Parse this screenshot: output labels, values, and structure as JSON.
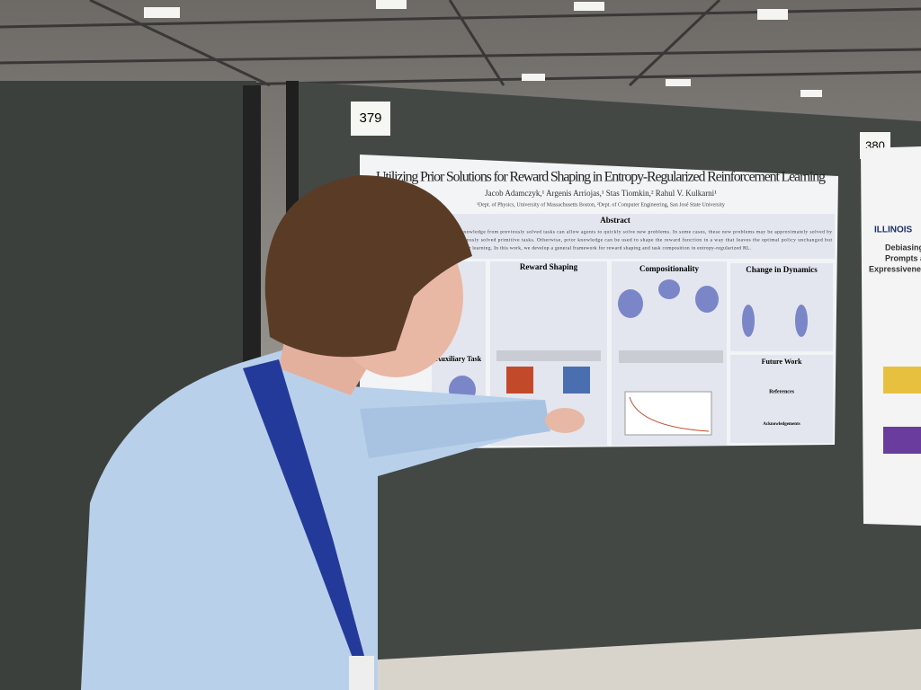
{
  "scene": {
    "board_numbers": [
      "379",
      "380"
    ]
  },
  "poster": {
    "title": "Utilizing Prior Solutions for Reward Shaping in Entropy-Regularized Reinforcement Learning",
    "authors": "Jacob Adamczyk,¹ Argenis Arriojas,¹ Stas Tiomkin,² Rahul V. Kulkarni¹",
    "affiliations": "¹Dept. of Physics, University of Massachusetts Boston, ²Dept. of Computer Engineering, San José State University",
    "abstract_heading": "Abstract",
    "abstract_lines": [
      "or knowledge from previously solved tasks can allow agents to quickly solve new problems. In some cases, these new problems may be approximately solved by",
      "previously solved primitive tasks. Otherwise, prior knowledge can be used to shape the reward function in a way that leaves the optimal policy unchanged but",
      "quicker learning. In this work, we develop a general framework for reward shaping and task composition in entropy-regularized RL."
    ],
    "sections": [
      "Reward Shaping",
      "Compositionality",
      "Change in Dynamics",
      "Future Work",
      "References",
      "Acknowledgements"
    ],
    "left_label": "Auxiliary Task"
  },
  "neighbor_poster": {
    "logo": "ILLINOIS",
    "title_lines": [
      "Debiasing wit",
      "Prompts and",
      "Expressiveness-B"
    ]
  }
}
